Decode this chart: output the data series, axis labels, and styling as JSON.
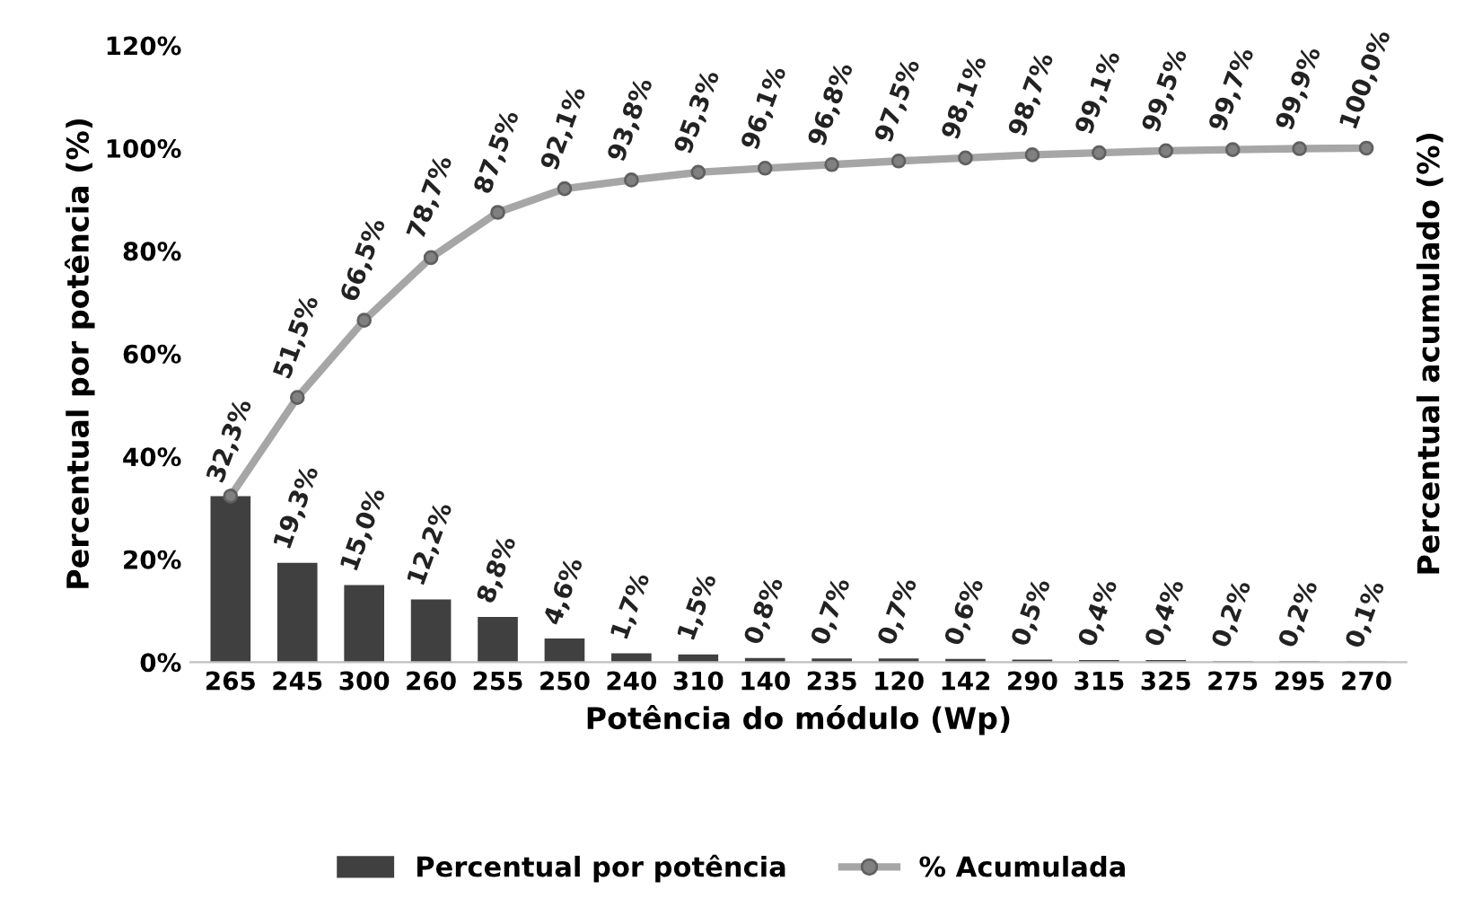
{
  "chart_data": {
    "type": "bar",
    "categories": [
      "265",
      "245",
      "300",
      "260",
      "255",
      "250",
      "240",
      "310",
      "140",
      "235",
      "120",
      "142",
      "290",
      "315",
      "325",
      "275",
      "295",
      "270"
    ],
    "xlabel": "Potência do módulo (Wp)",
    "ylabel": "Percentual por potência (%)",
    "y2label": "Percentual acumulado (%)",
    "ylim": [
      0,
      120
    ],
    "yticks": [
      {
        "value": 0,
        "label": "0%"
      },
      {
        "value": 20,
        "label": "20%"
      },
      {
        "value": 40,
        "label": "40%"
      },
      {
        "value": 60,
        "label": "60%"
      },
      {
        "value": 80,
        "label": "80%"
      },
      {
        "value": 100,
        "label": "100%"
      },
      {
        "value": 120,
        "label": "120%"
      }
    ],
    "grid": false,
    "legend": "bottom",
    "series": [
      {
        "name": "Percentual por potência",
        "color": "#404040",
        "values": [
          32.3,
          19.3,
          15.0,
          12.2,
          8.8,
          4.6,
          1.7,
          1.5,
          0.8,
          0.7,
          0.7,
          0.6,
          0.5,
          0.4,
          0.4,
          0.2,
          0.2,
          0.1
        ],
        "value_labels": [
          "32,3%",
          "19,3%",
          "15,0%",
          "12,2%",
          "8,8%",
          "4,6%",
          "1,7%",
          "1,5%",
          "0,8%",
          "0,7%",
          "0,7%",
          "0,6%",
          "0,5%",
          "0,4%",
          "0,4%",
          "0,2%",
          "0,2%",
          "0,1%"
        ]
      },
      {
        "name": "% Acumulada",
        "type": "line",
        "color": "#a6a6a6",
        "marker": "circle",
        "values": [
          32.3,
          51.5,
          66.5,
          78.7,
          87.5,
          92.1,
          93.8,
          95.3,
          96.1,
          96.8,
          97.5,
          98.1,
          98.7,
          99.1,
          99.5,
          99.7,
          99.9,
          100.0
        ],
        "value_labels": [
          null,
          "51,5%",
          "66,5%",
          "78,7%",
          "87,5%",
          "92,1%",
          "93,8%",
          "95,3%",
          "96,1%",
          "96,8%",
          "97,5%",
          "98,1%",
          "98,7%",
          "99,1%",
          "99,5%",
          "99,7%",
          "99,9%",
          "100,0%"
        ]
      }
    ]
  }
}
